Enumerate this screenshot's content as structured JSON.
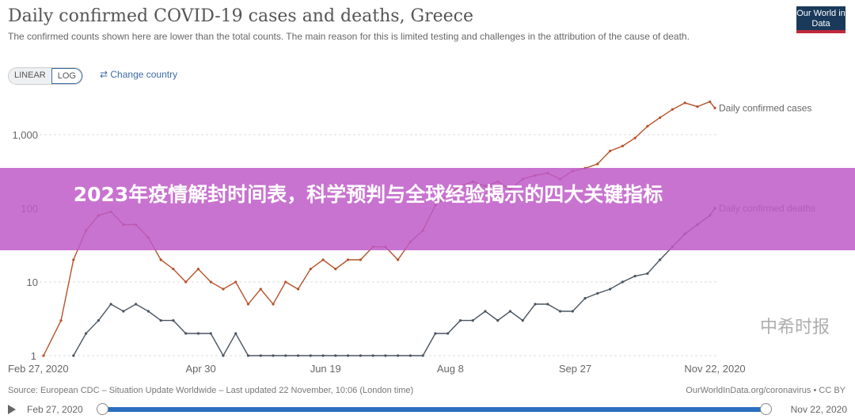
{
  "header": {
    "title": "Daily confirmed COVID-19 cases and deaths, Greece",
    "subtitle": "The confirmed counts shown here are lower than the total counts. The main reason for this is limited testing and challenges in the attribution of the cause of death.",
    "logo": "Our World in Data",
    "scale_linear": "LINEAR",
    "scale_log": "LOG",
    "change_country": "⇄ Change country"
  },
  "footer": {
    "source": "Source: European CDC – Situation Update Worldwide – Last updated 22 November, 10:06 (London time)",
    "license": "OurWorldInData.org/coronavirus • CC BY"
  },
  "timeline": {
    "start": "Feb 27, 2020",
    "end": "Nov 22, 2020"
  },
  "overlay": {
    "banner": "2023年疫情解封时间表，科学预判与全球经验揭示的四大关键指标",
    "watermark": "中希时报"
  },
  "chart_data": {
    "type": "line",
    "yscale": "log",
    "ylim": [
      1,
      3000
    ],
    "yticks": [
      {
        "v": 1,
        "label": "1"
      },
      {
        "v": 10,
        "label": "10"
      },
      {
        "v": 100,
        "label": "100"
      },
      {
        "v": 1000,
        "label": "1,000"
      }
    ],
    "xticks": [
      "Feb 27, 2020",
      "Apr 30",
      "Jun 19",
      "Aug 8",
      "Sep 27",
      "Nov 22, 2020"
    ],
    "xtick_dates": [
      "2020-02-27",
      "2020-04-30",
      "2020-06-19",
      "2020-08-08",
      "2020-09-27",
      "2020-11-22"
    ],
    "grid": true,
    "x": [
      "2020-02-27",
      "2020-03-05",
      "2020-03-10",
      "2020-03-15",
      "2020-03-20",
      "2020-03-25",
      "2020-03-30",
      "2020-04-04",
      "2020-04-09",
      "2020-04-14",
      "2020-04-19",
      "2020-04-24",
      "2020-04-29",
      "2020-05-04",
      "2020-05-09",
      "2020-05-14",
      "2020-05-19",
      "2020-05-24",
      "2020-05-29",
      "2020-06-03",
      "2020-06-08",
      "2020-06-13",
      "2020-06-18",
      "2020-06-23",
      "2020-06-28",
      "2020-07-03",
      "2020-07-08",
      "2020-07-13",
      "2020-07-18",
      "2020-07-23",
      "2020-07-28",
      "2020-08-02",
      "2020-08-07",
      "2020-08-12",
      "2020-08-17",
      "2020-08-22",
      "2020-08-27",
      "2020-09-01",
      "2020-09-06",
      "2020-09-11",
      "2020-09-16",
      "2020-09-21",
      "2020-09-26",
      "2020-10-01",
      "2020-10-06",
      "2020-10-11",
      "2020-10-16",
      "2020-10-21",
      "2020-10-26",
      "2020-10-31",
      "2020-11-05",
      "2020-11-10",
      "2020-11-15",
      "2020-11-20",
      "2020-11-22"
    ],
    "series": [
      {
        "name": "Daily confirmed cases",
        "color": "#b5532a",
        "values": [
          1,
          3,
          20,
          50,
          80,
          90,
          60,
          60,
          40,
          20,
          15,
          10,
          15,
          10,
          8,
          10,
          5,
          8,
          5,
          10,
          8,
          15,
          20,
          15,
          20,
          20,
          30,
          30,
          20,
          35,
          50,
          110,
          150,
          200,
          230,
          200,
          230,
          180,
          250,
          280,
          300,
          250,
          320,
          350,
          400,
          600,
          700,
          900,
          1300,
          1700,
          2200,
          2700,
          2400,
          2800,
          2300
        ]
      },
      {
        "name": "Daily confirmed deaths",
        "color": "#4a5560",
        "values": [
          null,
          null,
          1,
          2,
          3,
          5,
          4,
          5,
          4,
          3,
          3,
          2,
          2,
          2,
          1,
          2,
          1,
          1,
          1,
          1,
          1,
          1,
          1,
          1,
          1,
          1,
          1,
          1,
          1,
          1,
          1,
          2,
          2,
          3,
          3,
          4,
          3,
          4,
          3,
          5,
          5,
          4,
          4,
          6,
          7,
          8,
          10,
          12,
          13,
          20,
          30,
          45,
          60,
          80,
          100
        ]
      }
    ]
  }
}
